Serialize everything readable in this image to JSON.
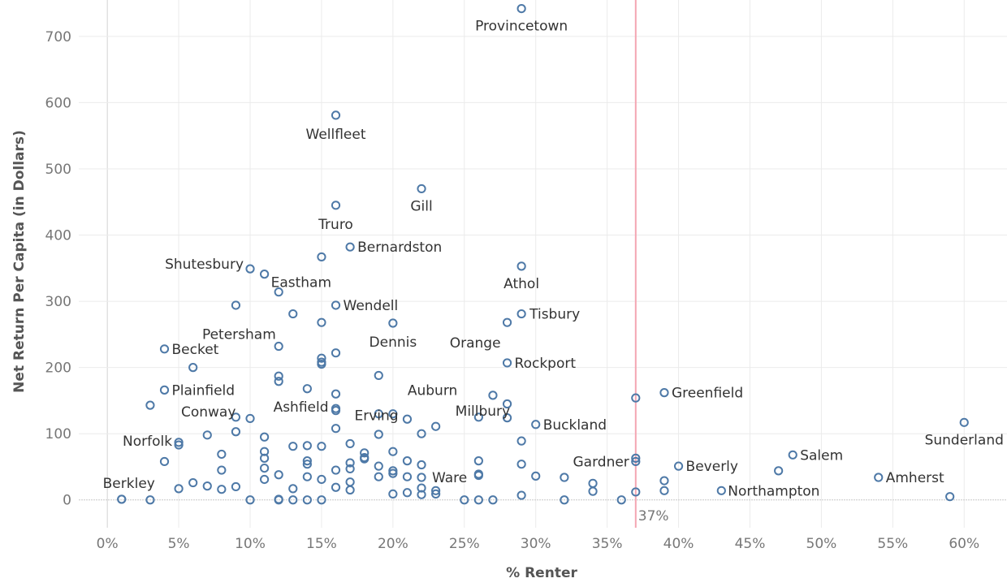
{
  "chart_data": {
    "type": "scatter",
    "title": "",
    "xlabel": "% Renter",
    "ylabel": "Net Return Per Capita (in Dollars)",
    "xlim": [
      -0.02,
      0.63
    ],
    "ylim": [
      -42,
      755
    ],
    "x_ticks": [
      0,
      0.05,
      0.1,
      0.15,
      0.2,
      0.25,
      0.3,
      0.35,
      0.4,
      0.45,
      0.5,
      0.55,
      0.6
    ],
    "x_tick_labels": [
      "0%",
      "5%",
      "10%",
      "15%",
      "20%",
      "25%",
      "30%",
      "35%",
      "40%",
      "45%",
      "50%",
      "55%",
      "60%"
    ],
    "y_ticks": [
      0,
      100,
      200,
      300,
      400,
      500,
      600,
      700
    ],
    "y_tick_labels": [
      "0",
      "100",
      "200",
      "300",
      "400",
      "500",
      "600",
      "700"
    ],
    "grid": true,
    "marker": "hollow-circle",
    "colors": {
      "marker": "#4e79a7",
      "reference_line": "#f4a6b2",
      "grid": "#ebebeb",
      "zero_line": "#c8c8c8"
    },
    "reference_line": {
      "x": 0.37,
      "label": "37%"
    },
    "points": [
      {
        "x": 0.29,
        "y": 742,
        "label": "Provincetown"
      },
      {
        "x": 0.16,
        "y": 581,
        "label": "Wellfleet"
      },
      {
        "x": 0.22,
        "y": 470,
        "label": "Gill"
      },
      {
        "x": 0.16,
        "y": 445,
        "label": "Truro"
      },
      {
        "x": 0.17,
        "y": 382,
        "label": "Bernardston"
      },
      {
        "x": 0.15,
        "y": 367
      },
      {
        "x": 0.29,
        "y": 353,
        "label": "Athol"
      },
      {
        "x": 0.1,
        "y": 349,
        "label": "Shutesbury"
      },
      {
        "x": 0.11,
        "y": 341,
        "label": "Eastham"
      },
      {
        "x": 0.12,
        "y": 314
      },
      {
        "x": 0.09,
        "y": 294
      },
      {
        "x": 0.16,
        "y": 294,
        "label": "Wendell"
      },
      {
        "x": 0.13,
        "y": 281,
        "label": "Petersham"
      },
      {
        "x": 0.29,
        "y": 281,
        "label": "Tisbury"
      },
      {
        "x": 0.15,
        "y": 268
      },
      {
        "x": 0.2,
        "y": 267,
        "label": "Dennis"
      },
      {
        "x": 0.28,
        "y": 268,
        "label": "Orange"
      },
      {
        "x": 0.12,
        "y": 232
      },
      {
        "x": 0.04,
        "y": 228,
        "label": "Becket"
      },
      {
        "x": 0.16,
        "y": 222
      },
      {
        "x": 0.15,
        "y": 214
      },
      {
        "x": 0.15,
        "y": 208
      },
      {
        "x": 0.15,
        "y": 205
      },
      {
        "x": 0.28,
        "y": 207,
        "label": "Rockport"
      },
      {
        "x": 0.06,
        "y": 200
      },
      {
        "x": 0.12,
        "y": 187
      },
      {
        "x": 0.19,
        "y": 188
      },
      {
        "x": 0.12,
        "y": 179
      },
      {
        "x": 0.14,
        "y": 168
      },
      {
        "x": 0.04,
        "y": 166,
        "label": "Plainfield"
      },
      {
        "x": 0.39,
        "y": 162,
        "label": "Greenfield"
      },
      {
        "x": 0.16,
        "y": 160,
        "label": "Erving"
      },
      {
        "x": 0.27,
        "y": 158
      },
      {
        "x": 0.37,
        "y": 154
      },
      {
        "x": 0.28,
        "y": 145
      },
      {
        "x": 0.03,
        "y": 143
      },
      {
        "x": 0.16,
        "y": 138,
        "label": "Ashfield"
      },
      {
        "x": 0.16,
        "y": 135
      },
      {
        "x": 0.19,
        "y": 130
      },
      {
        "x": 0.2,
        "y": 130,
        "label": "Auburn"
      },
      {
        "x": 0.09,
        "y": 125,
        "label": "Conway"
      },
      {
        "x": 0.26,
        "y": 125
      },
      {
        "x": 0.28,
        "y": 124
      },
      {
        "x": 0.1,
        "y": 123
      },
      {
        "x": 0.21,
        "y": 122
      },
      {
        "x": 0.6,
        "y": 117,
        "label": "Sunderland"
      },
      {
        "x": 0.3,
        "y": 114,
        "label": "Buckland"
      },
      {
        "x": 0.23,
        "y": 111
      },
      {
        "x": 0.16,
        "y": 108
      },
      {
        "x": 0.09,
        "y": 103
      },
      {
        "x": 0.22,
        "y": 100
      },
      {
        "x": 0.19,
        "y": 99
      },
      {
        "x": 0.07,
        "y": 98
      },
      {
        "x": 0.11,
        "y": 95
      },
      {
        "x": 0.29,
        "y": 89,
        "label": "Millbury"
      },
      {
        "x": 0.05,
        "y": 87,
        "label": "Norfolk"
      },
      {
        "x": 0.17,
        "y": 85
      },
      {
        "x": 0.05,
        "y": 83
      },
      {
        "x": 0.14,
        "y": 82
      },
      {
        "x": 0.13,
        "y": 81
      },
      {
        "x": 0.15,
        "y": 81
      },
      {
        "x": 0.11,
        "y": 73
      },
      {
        "x": 0.2,
        "y": 73
      },
      {
        "x": 0.18,
        "y": 71
      },
      {
        "x": 0.08,
        "y": 69
      },
      {
        "x": 0.48,
        "y": 68,
        "label": "Salem"
      },
      {
        "x": 0.18,
        "y": 64
      },
      {
        "x": 0.11,
        "y": 63
      },
      {
        "x": 0.18,
        "y": 62
      },
      {
        "x": 0.37,
        "y": 63,
        "label": "Gardner"
      },
      {
        "x": 0.21,
        "y": 59
      },
      {
        "x": 0.14,
        "y": 59
      },
      {
        "x": 0.26,
        "y": 59
      },
      {
        "x": 0.04,
        "y": 58
      },
      {
        "x": 0.37,
        "y": 58
      },
      {
        "x": 0.17,
        "y": 56
      },
      {
        "x": 0.14,
        "y": 54
      },
      {
        "x": 0.29,
        "y": 54
      },
      {
        "x": 0.22,
        "y": 53
      },
      {
        "x": 0.19,
        "y": 51
      },
      {
        "x": 0.4,
        "y": 51,
        "label": "Beverly"
      },
      {
        "x": 0.11,
        "y": 48
      },
      {
        "x": 0.17,
        "y": 47
      },
      {
        "x": 0.08,
        "y": 45
      },
      {
        "x": 0.16,
        "y": 45
      },
      {
        "x": 0.2,
        "y": 44
      },
      {
        "x": 0.47,
        "y": 44
      },
      {
        "x": 0.2,
        "y": 40
      },
      {
        "x": 0.26,
        "y": 39
      },
      {
        "x": 0.12,
        "y": 38
      },
      {
        "x": 0.26,
        "y": 37
      },
      {
        "x": 0.3,
        "y": 36
      },
      {
        "x": 0.21,
        "y": 35
      },
      {
        "x": 0.14,
        "y": 35
      },
      {
        "x": 0.19,
        "y": 35
      },
      {
        "x": 0.22,
        "y": 34,
        "label": "Ware"
      },
      {
        "x": 0.32,
        "y": 34
      },
      {
        "x": 0.54,
        "y": 34,
        "label": "Amherst"
      },
      {
        "x": 0.11,
        "y": 31
      },
      {
        "x": 0.15,
        "y": 31
      },
      {
        "x": 0.39,
        "y": 29
      },
      {
        "x": 0.17,
        "y": 27
      },
      {
        "x": 0.34,
        "y": 25
      },
      {
        "x": 0.06,
        "y": 26
      },
      {
        "x": 0.07,
        "y": 21
      },
      {
        "x": 0.09,
        "y": 20
      },
      {
        "x": 0.16,
        "y": 19
      },
      {
        "x": 0.22,
        "y": 18
      },
      {
        "x": 0.13,
        "y": 17
      },
      {
        "x": 0.05,
        "y": 17
      },
      {
        "x": 0.08,
        "y": 16
      },
      {
        "x": 0.17,
        "y": 15
      },
      {
        "x": 0.43,
        "y": 14,
        "label": "Northampton"
      },
      {
        "x": 0.23,
        "y": 14
      },
      {
        "x": 0.34,
        "y": 13
      },
      {
        "x": 0.39,
        "y": 14
      },
      {
        "x": 0.37,
        "y": 12
      },
      {
        "x": 0.21,
        "y": 11
      },
      {
        "x": 0.23,
        "y": 9
      },
      {
        "x": 0.2,
        "y": 9
      },
      {
        "x": 0.22,
        "y": 8
      },
      {
        "x": 0.29,
        "y": 7
      },
      {
        "x": 0.59,
        "y": 5
      },
      {
        "x": 0.01,
        "y": 1,
        "label": "Berkley"
      },
      {
        "x": 0.01,
        "y": 1
      },
      {
        "x": 0.03,
        "y": 0
      },
      {
        "x": 0.1,
        "y": 0
      },
      {
        "x": 0.12,
        "y": 0
      },
      {
        "x": 0.12,
        "y": 1
      },
      {
        "x": 0.13,
        "y": 0
      },
      {
        "x": 0.14,
        "y": 0
      },
      {
        "x": 0.15,
        "y": 0
      },
      {
        "x": 0.25,
        "y": 0
      },
      {
        "x": 0.26,
        "y": 0
      },
      {
        "x": 0.27,
        "y": 0
      },
      {
        "x": 0.32,
        "y": 0
      },
      {
        "x": 0.36,
        "y": 0
      }
    ]
  }
}
